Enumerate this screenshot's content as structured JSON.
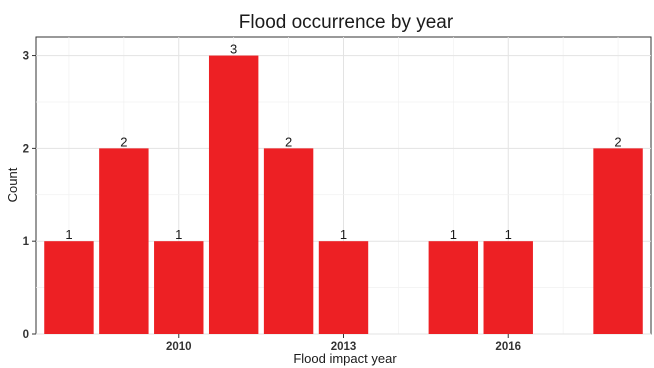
{
  "chart_data": {
    "type": "bar",
    "title": "Flood occurrence by year",
    "xlabel": "Flood impact year",
    "ylabel": "Count",
    "x": [
      2008,
      2009,
      2010,
      2011,
      2012,
      2013,
      2015,
      2016,
      2018
    ],
    "values": [
      1,
      2,
      1,
      3,
      2,
      1,
      1,
      1,
      2
    ],
    "data_labels": [
      "1",
      "2",
      "1",
      "3",
      "2",
      "1",
      "1",
      "1",
      "2"
    ],
    "xlim": [
      2007.4,
      2018.6
    ],
    "ylim": [
      0,
      3.2
    ],
    "x_ticks": [
      2010,
      2013,
      2016
    ],
    "x_tick_labels": [
      "2010",
      "2013",
      "2016"
    ],
    "y_ticks": [
      0,
      1,
      2,
      3
    ],
    "y_tick_labels": [
      "0",
      "1",
      "2",
      "3"
    ],
    "bar_color": "#ed2024",
    "grid": true,
    "legend": "none"
  }
}
